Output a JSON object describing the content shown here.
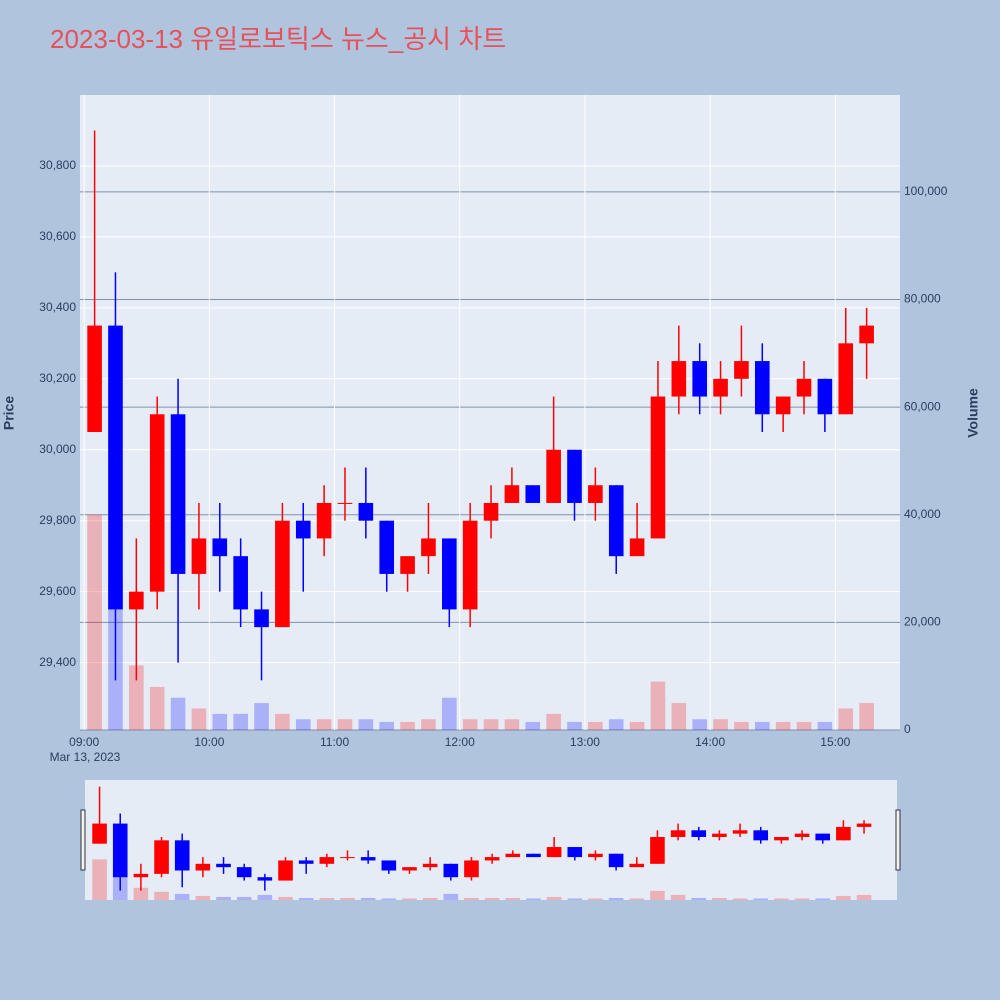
{
  "chart_data": {
    "type": "candlestick",
    "title": "2023-03-13 유일로보틱스 뉴스_공시 차트",
    "ylabel": "Price",
    "y2label": "Volume",
    "x_sublabel": "Mar 13, 2023",
    "x": [
      "2023-03-13 09:00",
      "2023-03-13 09:10",
      "2023-03-13 09:20",
      "2023-03-13 09:30",
      "2023-03-13 09:40",
      "2023-03-13 09:50",
      "2023-03-13 10:00",
      "2023-03-13 10:10",
      "2023-03-13 10:20",
      "2023-03-13 10:30",
      "2023-03-13 10:40",
      "2023-03-13 10:50",
      "2023-03-13 11:00",
      "2023-03-13 11:10",
      "2023-03-13 11:20",
      "2023-03-13 11:30",
      "2023-03-13 11:40",
      "2023-03-13 11:50",
      "2023-03-13 12:00",
      "2023-03-13 12:10",
      "2023-03-13 12:20",
      "2023-03-13 12:30",
      "2023-03-13 12:40",
      "2023-03-13 12:50",
      "2023-03-13 13:00",
      "2023-03-13 13:10",
      "2023-03-13 13:20",
      "2023-03-13 13:30",
      "2023-03-13 13:40",
      "2023-03-13 13:50",
      "2023-03-13 14:00",
      "2023-03-13 14:10",
      "2023-03-13 14:20",
      "2023-03-13 14:30",
      "2023-03-13 14:40",
      "2023-03-13 14:50",
      "2023-03-13 15:00",
      "2023-03-13 15:10"
    ],
    "open": [
      30050,
      30350,
      29550,
      29600,
      30100,
      29650,
      29750,
      29700,
      29550,
      29500,
      29800,
      29750,
      29850,
      29850,
      29800,
      29650,
      29700,
      29750,
      29550,
      29800,
      29850,
      29900,
      29850,
      30000,
      29850,
      29900,
      29700,
      29750,
      30150,
      30250,
      30150,
      30200,
      30250,
      30100,
      30150,
      30200,
      30100,
      30300
    ],
    "high": [
      30900,
      30500,
      29750,
      30150,
      30200,
      29850,
      29850,
      29750,
      29600,
      29850,
      29850,
      29900,
      29950,
      29950,
      29800,
      29700,
      29850,
      29750,
      29850,
      29900,
      29950,
      29900,
      30150,
      30000,
      29950,
      29900,
      29850,
      30250,
      30350,
      30300,
      30250,
      30350,
      30300,
      30150,
      30250,
      30200,
      30400,
      30400
    ],
    "low": [
      30050,
      29350,
      29350,
      29550,
      29400,
      29550,
      29600,
      29500,
      29350,
      29500,
      29600,
      29700,
      29800,
      29750,
      29600,
      29600,
      29650,
      29500,
      29500,
      29750,
      29850,
      29850,
      29850,
      29800,
      29800,
      29650,
      29700,
      29750,
      30100,
      30100,
      30100,
      30150,
      30050,
      30050,
      30100,
      30050,
      30100,
      30200
    ],
    "close": [
      30350,
      29550,
      29600,
      30100,
      29650,
      29750,
      29700,
      29550,
      29500,
      29800,
      29750,
      29850,
      29850,
      29800,
      29650,
      29700,
      29750,
      29550,
      29800,
      29850,
      29900,
      29850,
      30000,
      29850,
      29900,
      29700,
      29750,
      30150,
      30250,
      30150,
      30200,
      30250,
      30100,
      30150,
      30200,
      30100,
      30300,
      30350
    ],
    "volume": [
      40000,
      28000,
      12000,
      8000,
      6000,
      4000,
      3000,
      3000,
      5000,
      3000,
      2000,
      2000,
      2000,
      2000,
      1500,
      1500,
      2000,
      6000,
      2000,
      2000,
      2000,
      1500,
      3000,
      1500,
      1500,
      2000,
      1500,
      9000,
      5000,
      2000,
      2000,
      1500,
      1500,
      1500,
      1500,
      1500,
      4000,
      5000
    ],
    "increasing_color": "#ff0000",
    "decreasing_color": "#0000ff",
    "xlim": [
      "2023-03-13 08:58",
      "2023-03-13 15:31"
    ],
    "xticks": [
      {
        "value": "2023-03-13 09:00",
        "label": "09:00"
      },
      {
        "value": "2023-03-13 10:00",
        "label": "10:00"
      },
      {
        "value": "2023-03-13 11:00",
        "label": "11:00"
      },
      {
        "value": "2023-03-13 12:00",
        "label": "12:00"
      },
      {
        "value": "2023-03-13 13:00",
        "label": "13:00"
      },
      {
        "value": "2023-03-13 14:00",
        "label": "14:00"
      },
      {
        "value": "2023-03-13 15:00",
        "label": "15:00"
      }
    ],
    "ylim": [
      29210,
      31000
    ],
    "yticks": [
      {
        "value": 29400,
        "label": "29,400"
      },
      {
        "value": 29600,
        "label": "29,600"
      },
      {
        "value": 29800,
        "label": "29,800"
      },
      {
        "value": 30000,
        "label": "30,000"
      },
      {
        "value": 30200,
        "label": "30,200"
      },
      {
        "value": 30400,
        "label": "30,400"
      },
      {
        "value": 30600,
        "label": "30,600"
      },
      {
        "value": 30800,
        "label": "30,800"
      }
    ],
    "y2lim": [
      0,
      118000
    ],
    "y2ticks": [
      0,
      {
        "value": 20000,
        "label": "20,000"
      },
      {
        "value": 40000,
        "label": "40,000"
      },
      {
        "value": 60000,
        "label": "60,000"
      },
      {
        "value": 80000,
        "label": "80,000"
      },
      {
        "value": 100000,
        "label": "100,000"
      }
    ],
    "grid": true,
    "rangeslider": true
  }
}
